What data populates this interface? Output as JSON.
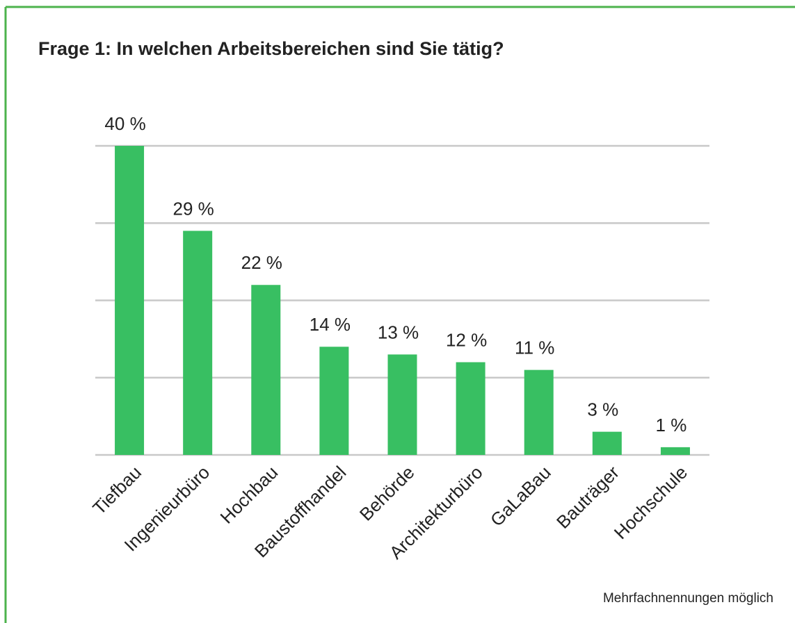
{
  "chart_data": {
    "type": "bar",
    "title": "Frage 1: In welchen Arbeitsbereichen sind Sie tätig?",
    "categories": [
      "Tiefbau",
      "Ingenieurbüro",
      "Hochbau",
      "Baustoffhandel",
      "Behörde",
      "Architekturbüro",
      "GaLaBau",
      "Bauträger",
      "Hochschule"
    ],
    "values": [
      40,
      29,
      22,
      14,
      13,
      12,
      11,
      3,
      1
    ],
    "value_labels": [
      "40 %",
      "29 %",
      "22 %",
      "14 %",
      "13 %",
      "12 %",
      "11 %",
      "3 %",
      "1 %"
    ],
    "color": "#38bf62",
    "ylim": [
      0,
      40
    ],
    "yticks": [
      0,
      10,
      20,
      30,
      40
    ],
    "grid": true,
    "annotation": "Mehrfachnennungen möglich"
  }
}
